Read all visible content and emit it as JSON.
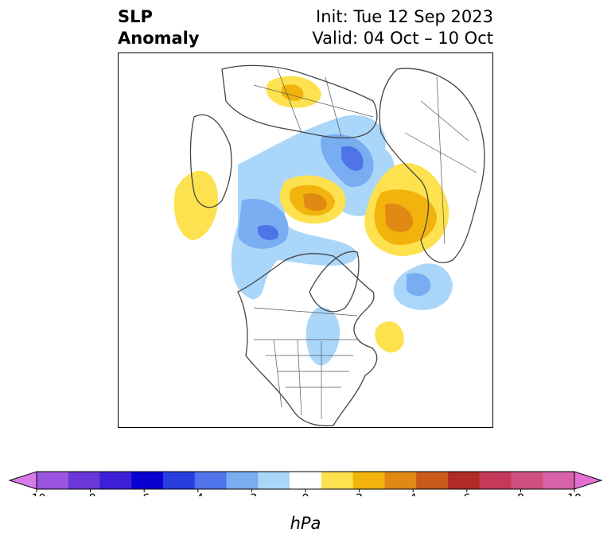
{
  "title": {
    "left_line1": "SLP",
    "left_line2": "Anomaly",
    "init": "Init: Tue 12 Sep 2023",
    "valid": "Valid: 04 Oct – 10 Oct"
  },
  "colorbar": {
    "unit": "hPa",
    "ticks": [
      "-10",
      "-8",
      "-6",
      "-4",
      "-2",
      "0",
      "2",
      "4",
      "6",
      "8",
      "10"
    ],
    "colors": [
      "#d77be8",
      "#9a55e0",
      "#6a38d8",
      "#3c1fd6",
      "#0a00cf",
      "#2a3ee0",
      "#4f74ea",
      "#78adf2",
      "#aad6fa",
      "#ffffff",
      "#fde14e",
      "#f2b40c",
      "#e08914",
      "#c95a1b",
      "#b02a26",
      "#c53a5a",
      "#cf4f80",
      "#d862a8",
      "#e46fd2"
    ],
    "extend": "both"
  },
  "map": {
    "projection": "north-polar-stereographic",
    "fields": [
      "land-outline",
      "country-borders",
      "us-state-borders"
    ]
  }
}
